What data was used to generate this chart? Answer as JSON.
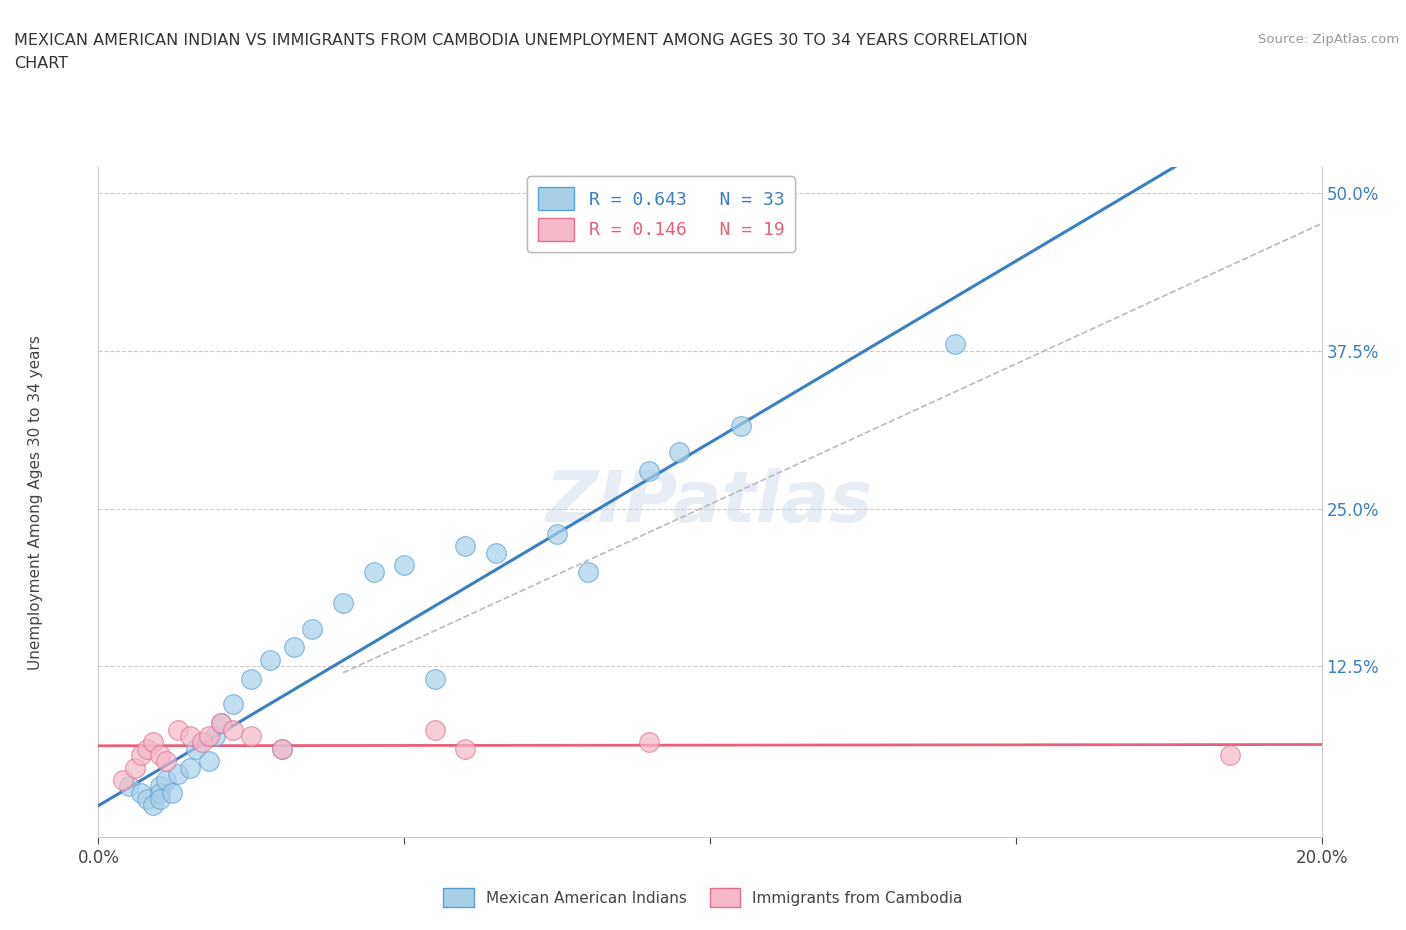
{
  "title_line1": "MEXICAN AMERICAN INDIAN VS IMMIGRANTS FROM CAMBODIA UNEMPLOYMENT AMONG AGES 30 TO 34 YEARS CORRELATION",
  "title_line2": "CHART",
  "source": "Source: ZipAtlas.com",
  "xlim": [
    0.0,
    0.2
  ],
  "ylim": [
    -0.01,
    0.52
  ],
  "ylabel": "Unemployment Among Ages 30 to 34 years",
  "blue_r": "0.643",
  "blue_n": "33",
  "pink_r": "0.146",
  "pink_n": "19",
  "blue_color": "#a8cfe8",
  "pink_color": "#f4b8c8",
  "blue_edge_color": "#5a9fd4",
  "pink_edge_color": "#e07090",
  "blue_line_color": "#3a7fc1",
  "pink_line_color": "#e8607a",
  "dash_line_color": "#bbbbbb",
  "grid_color": "#cccccc",
  "watermark": "ZIPatlas",
  "ytick_color": "#3a7fc1",
  "blue_legend_label": "R = 0.643   N = 33",
  "pink_legend_label": "R = 0.146   N = 19",
  "blue_bottom_label": "Mexican American Indians",
  "pink_bottom_label": "Immigrants from Cambodia",
  "blue_x": [
    0.005,
    0.007,
    0.008,
    0.009,
    0.01,
    0.01,
    0.01,
    0.011,
    0.012,
    0.013,
    0.015,
    0.016,
    0.018,
    0.019,
    0.02,
    0.022,
    0.025,
    0.028,
    0.03,
    0.032,
    0.035,
    0.04,
    0.045,
    0.05,
    0.055,
    0.06,
    0.065,
    0.075,
    0.08,
    0.09,
    0.095,
    0.105,
    0.14
  ],
  "blue_y": [
    0.03,
    0.025,
    0.02,
    0.015,
    0.03,
    0.025,
    0.02,
    0.035,
    0.025,
    0.04,
    0.045,
    0.06,
    0.05,
    0.07,
    0.08,
    0.095,
    0.115,
    0.13,
    0.06,
    0.14,
    0.155,
    0.175,
    0.2,
    0.205,
    0.115,
    0.22,
    0.215,
    0.23,
    0.2,
    0.28,
    0.295,
    0.315,
    0.38
  ],
  "pink_x": [
    0.004,
    0.006,
    0.007,
    0.008,
    0.009,
    0.01,
    0.011,
    0.013,
    0.015,
    0.017,
    0.018,
    0.02,
    0.022,
    0.025,
    0.03,
    0.055,
    0.06,
    0.09,
    0.185
  ],
  "pink_y": [
    0.035,
    0.045,
    0.055,
    0.06,
    0.065,
    0.055,
    0.05,
    0.075,
    0.07,
    0.065,
    0.07,
    0.08,
    0.075,
    0.07,
    0.06,
    0.075,
    0.06,
    0.065,
    0.055
  ]
}
